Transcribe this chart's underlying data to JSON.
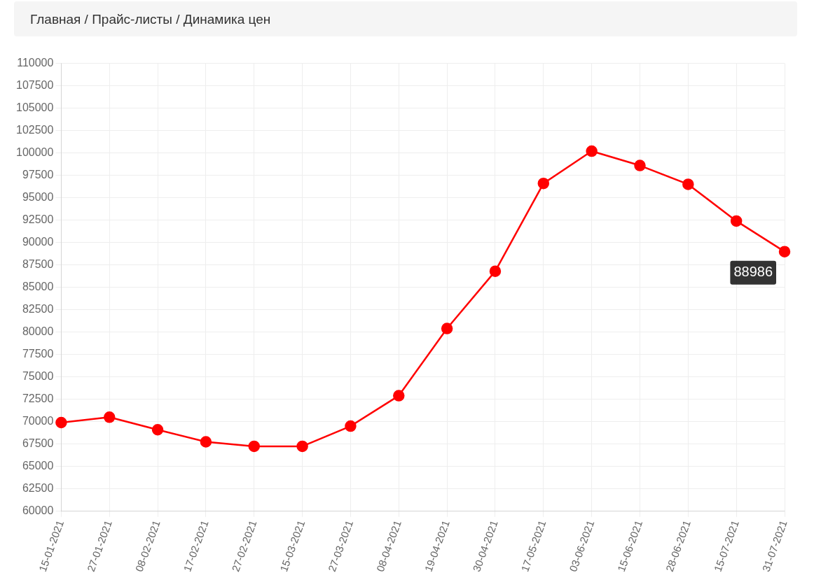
{
  "chart_data": {
    "type": "line",
    "title": "Главная / Прайс-листы / Динамика цен",
    "categories": [
      "15-01-2021",
      "27-01-2021",
      "08-02-2021",
      "17-02-2021",
      "27-02-2021",
      "15-03-2021",
      "27-03-2021",
      "08-04-2021",
      "19-04-2021",
      "30-04-2021",
      "17-05-2021",
      "03-06-2021",
      "15-06-2021",
      "28-06-2021",
      "15-07-2021",
      "31-07-2021"
    ],
    "values": [
      69900,
      70500,
      69100,
      67750,
      67250,
      67250,
      69500,
      72900,
      80400,
      86800,
      96600,
      100200,
      98600,
      96500,
      92400,
      88986
    ],
    "color": "#ff0000",
    "ylim": [
      60000,
      110000
    ],
    "yticks": [
      60000,
      62500,
      65000,
      67500,
      70000,
      72500,
      75000,
      77500,
      80000,
      82500,
      85000,
      87500,
      90000,
      92500,
      95000,
      97500,
      100000,
      102500,
      105000,
      107500,
      110000
    ],
    "grid": true,
    "marker": "circle",
    "line_style": "solid",
    "annotations": [
      {
        "text": "88986",
        "x": "31-07-2021",
        "y": 88986
      }
    ]
  }
}
